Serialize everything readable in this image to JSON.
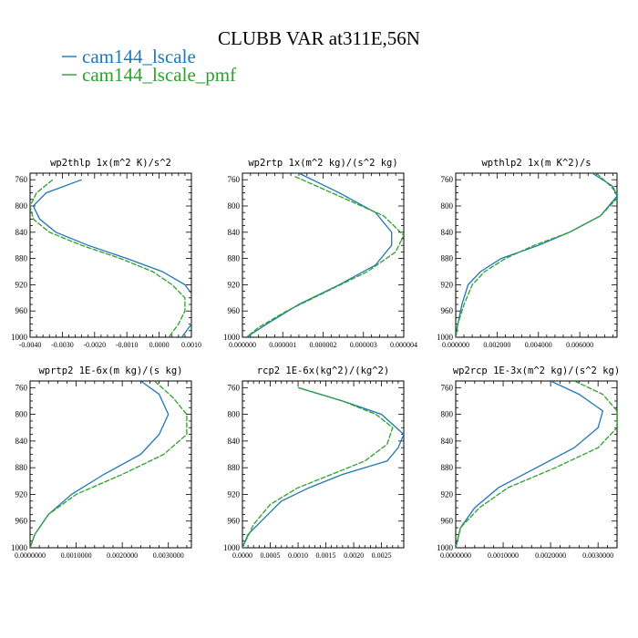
{
  "figure": {
    "title": "CLUBB VAR at311E,56N",
    "legend": [
      {
        "label": "cam144_lscale",
        "color": "#1f77b4"
      },
      {
        "label": "cam144_lscale_pmf",
        "color": "#2ca02c"
      }
    ]
  },
  "chart_data": [
    {
      "type": "line",
      "title": "wp2thlp   1x(m^2 K)/s^2",
      "ylim": [
        1000,
        750
      ],
      "xlim": [
        -0.004,
        0.001
      ],
      "y_ticks": [
        "760",
        "800",
        "840",
        "880",
        "920",
        "960",
        "1000"
      ],
      "x_ticks": [
        "-0.0040",
        "-0.0030",
        "-0.0020",
        "-0.0010",
        "0.0000",
        "0.0010"
      ],
      "series": [
        {
          "name": "cam144_lscale",
          "color": "#1f77b4",
          "points": [
            [
              -0.0024,
              760
            ],
            [
              -0.0035,
              780
            ],
            [
              -0.0039,
              800
            ],
            [
              -0.0037,
              820
            ],
            [
              -0.0032,
              840
            ],
            [
              -0.0022,
              860
            ],
            [
              -0.001,
              880
            ],
            [
              0.0001,
              900
            ],
            [
              0.0008,
              920
            ],
            [
              0.0011,
              940
            ],
            [
              0.0012,
              960
            ],
            [
              0.001,
              980
            ],
            [
              0.0007,
              1000
            ]
          ]
        },
        {
          "name": "cam144_lscale_pmf",
          "color": "#2ca02c",
          "points": [
            [
              -0.0033,
              760
            ],
            [
              -0.0038,
              780
            ],
            [
              -0.004,
              800
            ],
            [
              -0.0039,
              820
            ],
            [
              -0.0034,
              840
            ],
            [
              -0.0024,
              860
            ],
            [
              -0.0012,
              880
            ],
            [
              -0.0002,
              900
            ],
            [
              0.0004,
              920
            ],
            [
              0.0008,
              940
            ],
            [
              0.0008,
              960
            ],
            [
              0.0006,
              980
            ],
            [
              0.0003,
              1000
            ]
          ]
        }
      ]
    },
    {
      "type": "line",
      "title": "wp2rtp   1x(m^2 kg)/(s^2 kg)",
      "ylim": [
        1000,
        750
      ],
      "xlim": [
        0.0,
        4e-06
      ],
      "y_ticks": [
        "760",
        "800",
        "840",
        "880",
        "920",
        "960",
        "1000"
      ],
      "x_ticks": [
        "0.000000",
        "0.000001",
        "0.000002",
        "0.000003",
        "0.000004"
      ],
      "series": [
        {
          "name": "cam144_lscale",
          "color": "#1f77b4",
          "points": [
            [
              1.4e-06,
              750
            ],
            [
              2.4e-06,
              780
            ],
            [
              3.3e-06,
              810
            ],
            [
              3.7e-06,
              840
            ],
            [
              3.7e-06,
              860
            ],
            [
              3.3e-06,
              890
            ],
            [
              2.4e-06,
              920
            ],
            [
              1.4e-06,
              950
            ],
            [
              6e-07,
              980
            ],
            [
              1e-07,
              1000
            ]
          ]
        },
        {
          "name": "cam144_lscale_pmf",
          "color": "#2ca02c",
          "points": [
            [
              1.3e-06,
              755
            ],
            [
              2.4e-06,
              785
            ],
            [
              3.5e-06,
              815
            ],
            [
              4e-06,
              845
            ],
            [
              3.8e-06,
              870
            ],
            [
              3.1e-06,
              900
            ],
            [
              2.1e-06,
              930
            ],
            [
              1.1e-06,
              960
            ],
            [
              4e-07,
              985
            ],
            [
              1e-07,
              1000
            ]
          ]
        }
      ]
    },
    {
      "type": "line",
      "title": "wpthlp2   1x(m K^2)/s",
      "ylim": [
        1000,
        750
      ],
      "xlim": [
        0.0,
        0.0078
      ],
      "y_ticks": [
        "760",
        "800",
        "840",
        "880",
        "920",
        "960",
        "1000"
      ],
      "x_ticks": [
        "0.000000",
        "0.002000",
        "0.004000",
        "0.006000"
      ],
      "series": [
        {
          "name": "cam144_lscale",
          "color": "#1f77b4",
          "points": [
            [
              0.0066,
              750
            ],
            [
              0.0076,
              770
            ],
            [
              0.0078,
              785
            ],
            [
              0.007,
              815
            ],
            [
              0.0055,
              840
            ],
            [
              0.004,
              860
            ],
            [
              0.0022,
              880
            ],
            [
              0.0012,
              900
            ],
            [
              0.0006,
              920
            ],
            [
              0.0003,
              950
            ],
            [
              0.0001,
              980
            ],
            [
              0.0,
              1000
            ]
          ]
        },
        {
          "name": "cam144_lscale_pmf",
          "color": "#2ca02c",
          "points": [
            [
              0.0068,
              750
            ],
            [
              0.0075,
              770
            ],
            [
              0.0079,
              785
            ],
            [
              0.007,
              815
            ],
            [
              0.0055,
              840
            ],
            [
              0.0038,
              860
            ],
            [
              0.0024,
              880
            ],
            [
              0.0014,
              900
            ],
            [
              0.0008,
              920
            ],
            [
              0.0004,
              950
            ],
            [
              0.0001,
              980
            ],
            [
              0.0,
              1000
            ]
          ]
        }
      ]
    },
    {
      "type": "line",
      "title": "wprtp2   1E-6x(m kg)/(s kg)",
      "ylim": [
        1000,
        750
      ],
      "xlim": [
        0.0,
        0.0035
      ],
      "y_ticks": [
        "760",
        "800",
        "840",
        "880",
        "920",
        "960",
        "1000"
      ],
      "x_ticks": [
        "0.0000000",
        "0.0010000",
        "0.0020000",
        "0.0030000"
      ],
      "series": [
        {
          "name": "cam144_lscale",
          "color": "#1f77b4",
          "points": [
            [
              0.0024,
              750
            ],
            [
              0.0028,
              770
            ],
            [
              0.003,
              800
            ],
            [
              0.0028,
              830
            ],
            [
              0.0024,
              860
            ],
            [
              0.0016,
              890
            ],
            [
              0.0009,
              920
            ],
            [
              0.0004,
              950
            ],
            [
              0.0001,
              980
            ],
            [
              0.0,
              1000
            ]
          ]
        },
        {
          "name": "cam144_lscale_pmf",
          "color": "#2ca02c",
          "points": [
            [
              0.0027,
              750
            ],
            [
              0.0031,
              775
            ],
            [
              0.0034,
              800
            ],
            [
              0.0034,
              830
            ],
            [
              0.0029,
              860
            ],
            [
              0.002,
              890
            ],
            [
              0.001,
              920
            ],
            [
              0.0004,
              950
            ],
            [
              0.0001,
              980
            ],
            [
              0.0,
              1000
            ]
          ]
        }
      ]
    },
    {
      "type": "line",
      "title": "rcp2   1E-6x(kg^2)/(kg^2)",
      "ylim": [
        1000,
        750
      ],
      "xlim": [
        0.0,
        0.0029
      ],
      "y_ticks": [
        "760",
        "800",
        "840",
        "880",
        "920",
        "960",
        "1000"
      ],
      "x_ticks": [
        "0.0000",
        "0.0005",
        "0.0010",
        "0.0015",
        "0.0020",
        "0.0025"
      ],
      "series": [
        {
          "name": "cam144_lscale",
          "color": "#1f77b4",
          "points": [
            [
              0.001,
              760
            ],
            [
              0.0018,
              780
            ],
            [
              0.0025,
              800
            ],
            [
              0.0029,
              830
            ],
            [
              0.0028,
              850
            ],
            [
              0.0026,
              870
            ],
            [
              0.0018,
              890
            ],
            [
              0.0012,
              910
            ],
            [
              0.0007,
              930
            ],
            [
              0.0004,
              955
            ],
            [
              0.0001,
              980
            ],
            [
              0.0,
              1000
            ]
          ]
        },
        {
          "name": "cam144_lscale_pmf",
          "color": "#2ca02c",
          "points": [
            [
              0.001,
              760
            ],
            [
              0.0018,
              780
            ],
            [
              0.0024,
              800
            ],
            [
              0.0027,
              820
            ],
            [
              0.0026,
              845
            ],
            [
              0.0022,
              870
            ],
            [
              0.0016,
              890
            ],
            [
              0.001,
              910
            ],
            [
              0.0005,
              935
            ],
            [
              0.0002,
              965
            ],
            [
              0.0,
              1000
            ]
          ]
        }
      ]
    },
    {
      "type": "line",
      "title": "wp2rcp   1E-3x(m^2 kg)/(s^2 kg)",
      "ylim": [
        1000,
        750
      ],
      "xlim": [
        0.0,
        0.0034
      ],
      "y_ticks": [
        "760",
        "800",
        "840",
        "880",
        "920",
        "960",
        "1000"
      ],
      "x_ticks": [
        "0.0000000",
        "0.0010000",
        "0.0020000",
        "0.0030000"
      ],
      "series": [
        {
          "name": "cam144_lscale",
          "color": "#1f77b4",
          "points": [
            [
              0.002,
              750
            ],
            [
              0.0026,
              770
            ],
            [
              0.0031,
              795
            ],
            [
              0.003,
              820
            ],
            [
              0.0025,
              850
            ],
            [
              0.0017,
              880
            ],
            [
              0.0009,
              910
            ],
            [
              0.0004,
              940
            ],
            [
              0.0001,
              970
            ],
            [
              0.0,
              1000
            ]
          ]
        },
        {
          "name": "cam144_lscale_pmf",
          "color": "#2ca02c",
          "points": [
            [
              0.0025,
              750
            ],
            [
              0.0031,
              770
            ],
            [
              0.0034,
              795
            ],
            [
              0.0034,
              820
            ],
            [
              0.003,
              850
            ],
            [
              0.0021,
              880
            ],
            [
              0.0011,
              910
            ],
            [
              0.0005,
              940
            ],
            [
              0.0001,
              970
            ],
            [
              0.0,
              1000
            ]
          ]
        }
      ]
    }
  ]
}
